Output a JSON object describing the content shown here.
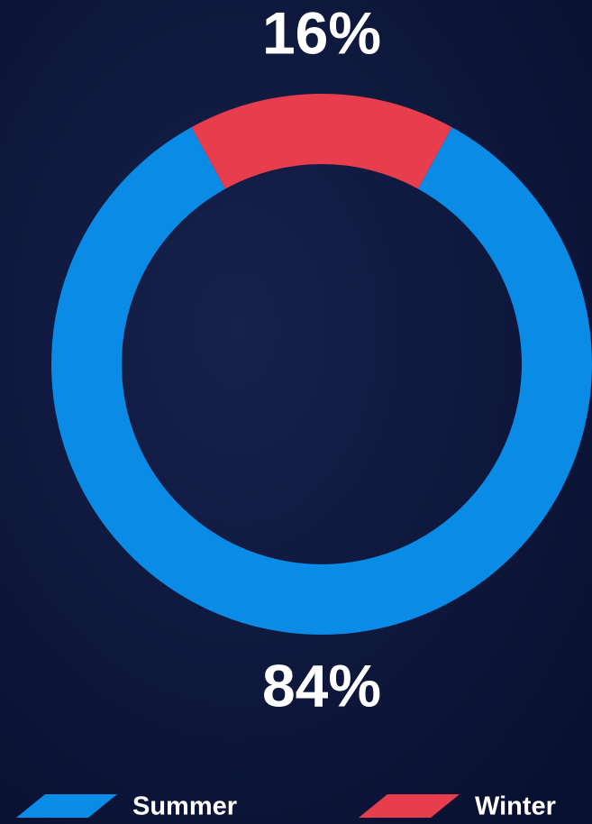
{
  "chart_data": {
    "type": "donut",
    "categories": [
      "Summer",
      "Winter"
    ],
    "values": [
      84,
      16
    ],
    "value_labels": [
      "84%",
      "16%"
    ],
    "colors": [
      "#0a8be6",
      "#e83d4d"
    ]
  }
}
